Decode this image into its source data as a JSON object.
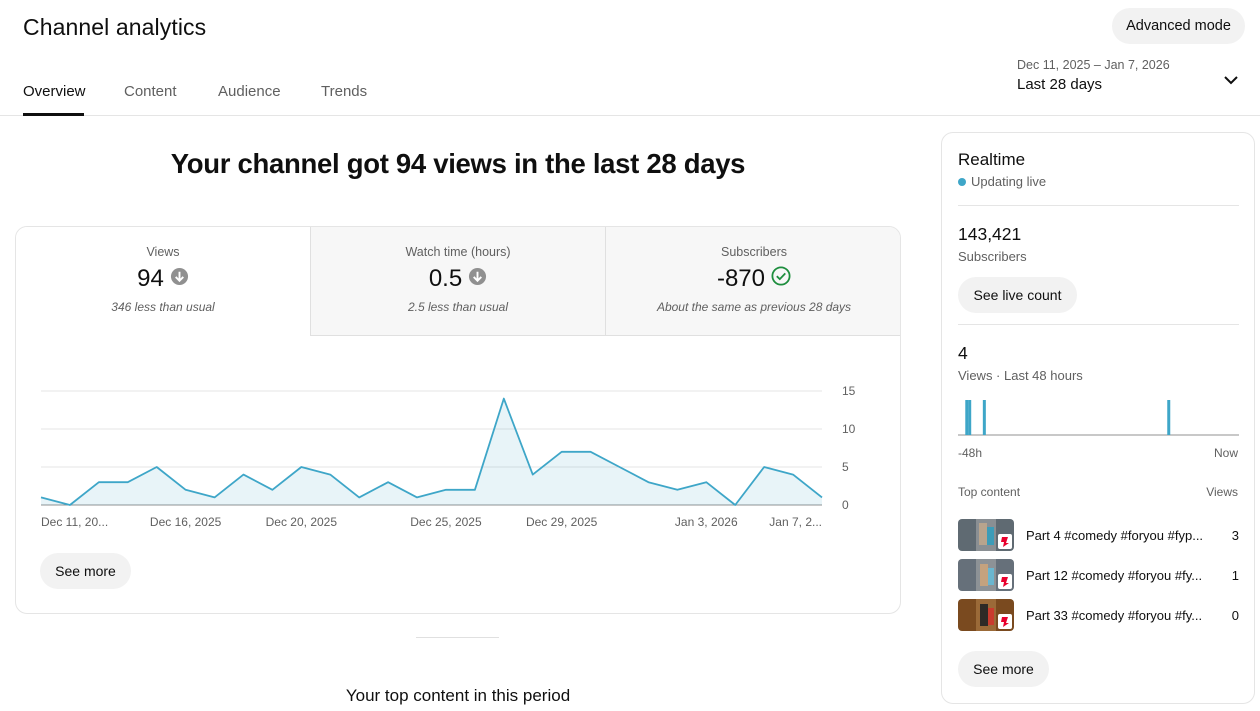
{
  "header": {
    "title": "Channel analytics",
    "advanced_mode_label": "Advanced mode"
  },
  "tabs": [
    {
      "label": "Overview",
      "active": true
    },
    {
      "label": "Content",
      "active": false
    },
    {
      "label": "Audience",
      "active": false
    },
    {
      "label": "Trends",
      "active": false
    }
  ],
  "date_picker": {
    "range": "Dec 11, 2025 – Jan 7, 2026",
    "label": "Last 28 days"
  },
  "headline": "Your channel got 94 views in the last 28 days",
  "metrics": [
    {
      "label": "Views",
      "value": "94",
      "trend": "down",
      "note": "346 less than usual"
    },
    {
      "label": "Watch time (hours)",
      "value": "0.5",
      "trend": "down",
      "note": "2.5 less than usual"
    },
    {
      "label": "Subscribers",
      "value": "-870",
      "trend": "same",
      "note": "About the same as previous 28 days"
    }
  ],
  "see_more_label": "See more",
  "top_content_title": "Your top content in this period",
  "chart_data": {
    "type": "area",
    "title": "",
    "xlabel": "",
    "ylabel": "",
    "x": [
      "Dec 11",
      "Dec 12",
      "Dec 13",
      "Dec 14",
      "Dec 15",
      "Dec 16",
      "Dec 17",
      "Dec 18",
      "Dec 19",
      "Dec 20",
      "Dec 21",
      "Dec 22",
      "Dec 23",
      "Dec 24",
      "Dec 25",
      "Dec 26",
      "Dec 27",
      "Dec 28",
      "Dec 29",
      "Dec 30",
      "Dec 31",
      "Jan 1",
      "Jan 2",
      "Jan 3",
      "Jan 4",
      "Jan 5",
      "Jan 6",
      "Jan 7"
    ],
    "series": [
      {
        "values": [
          1,
          0,
          3,
          3,
          5,
          2,
          1,
          4,
          2,
          5,
          4,
          1,
          3,
          1,
          2,
          2,
          14,
          4,
          7,
          7,
          5,
          3,
          2,
          3,
          0,
          5,
          4,
          1
        ]
      }
    ],
    "x_tick_labels": [
      "Dec 11, 20...",
      "Dec 16, 2025",
      "Dec 20, 2025",
      "Dec 25, 2025",
      "Dec 29, 2025",
      "Jan 3, 2026",
      "Jan 7, 2..."
    ],
    "x_tick_index": [
      0,
      5,
      9,
      14,
      18,
      23,
      27
    ],
    "y_ticks": [
      0,
      5,
      10,
      15
    ],
    "ylim": [
      0,
      15
    ],
    "grid": true,
    "color": "#3ea6c8"
  },
  "realtime": {
    "title": "Realtime",
    "live_label": "Updating live",
    "subscribers_value": "143,421",
    "subscribers_label": "Subscribers",
    "live_count_label": "See live count",
    "views_value": "4",
    "views_label": "Views · Last 48 hours",
    "axis_left": "-48h",
    "axis_right": "Now",
    "top_content_label": "Top content",
    "views_col_label": "Views",
    "bar_color": "#3ea6c8",
    "views_48h": [
      {
        "hours_ago": 46.5,
        "views": 1
      },
      {
        "hours_ago": 46.0,
        "views": 1
      },
      {
        "hours_ago": 43.5,
        "views": 1
      },
      {
        "hours_ago": 12.0,
        "views": 1
      }
    ],
    "items": [
      {
        "title": "Part 4 #comedy #foryou #fyp...",
        "views": "3"
      },
      {
        "title": "Part 12 #comedy #foryou #fy...",
        "views": "1"
      },
      {
        "title": "Part 33 #comedy #foryou #fy...",
        "views": "0"
      }
    ],
    "see_more_label": "See more"
  }
}
